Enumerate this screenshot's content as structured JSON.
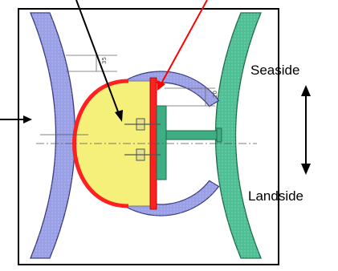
{
  "labels": {
    "top": "Seaside",
    "bottom": "Landside"
  },
  "dimension_marks": {
    "left": "35",
    "right": "20"
  },
  "colors": {
    "left_member": "#9aa0e6",
    "right_member": "#4fbf95",
    "ring": "#9aa0e6",
    "fender": "#f5f07a",
    "liner": "#ff2020",
    "bracket": "#3fae84",
    "pointer_red": "#ff0000",
    "pointer_black": "#000000"
  }
}
